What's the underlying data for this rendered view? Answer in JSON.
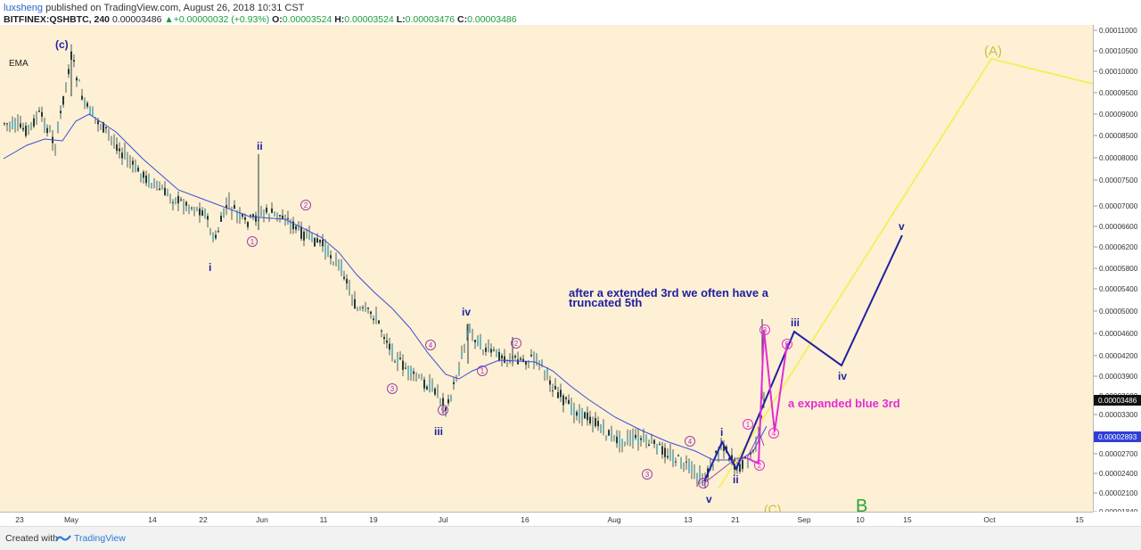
{
  "header": {
    "author": "luxsheng",
    "published_text": "published on TradingView.com, August 26, 2018 10:31 CST",
    "symbol": "BITFINEX:QSHBTC, 240",
    "last": "0.00003486",
    "change": "+0.00000032 (+0.93%)",
    "o_label": "O:",
    "o_val": "0.00003524",
    "h_label": "H:",
    "h_val": "0.00003524",
    "l_label": "L:",
    "l_val": "0.00003476",
    "c_label": "C:",
    "c_val": "0.00003486"
  },
  "indicator": {
    "label": "EMA"
  },
  "price_axis": {
    "ticks": [
      "0.00011000",
      "0.00010500",
      "0.00010000",
      "0.00009500",
      "0.00009000",
      "0.00008500",
      "0.00008000",
      "0.00007500",
      "0.00007000",
      "0.00006600",
      "0.00006200",
      "0.00005800",
      "0.00005400",
      "0.00005000",
      "0.00004600",
      "0.00004200",
      "0.00003900",
      "0.00003600",
      "0.00003300",
      "0.00003000",
      "0.00002700",
      "0.00002400",
      "0.00002100",
      "0.00001840"
    ],
    "current_price": "0.00003486",
    "ema_price": "0.00002893"
  },
  "time_axis": {
    "ticks": [
      "23",
      "May",
      "14",
      "22",
      "Jun",
      "11",
      "19",
      "Jul",
      "16",
      "Aug",
      "13",
      "21",
      "Sep",
      "10",
      "15",
      "Oct",
      "15"
    ]
  },
  "annotations": {
    "note1_line1": "after a extended 3rd we often have a",
    "note1_line2": "truncated 5th",
    "note2": "a expanded blue 3rd",
    "big_A": "(A)",
    "big_B": "B",
    "big_C": "(C)",
    "wave_c": "(c)",
    "wave_i": "i",
    "wave_ii": "ii",
    "wave_iii": "iii",
    "wave_iv": "iv",
    "wave_v": "v",
    "c1": "1",
    "c2": "2",
    "c3": "3",
    "c4": "4",
    "c5": "5"
  },
  "colors": {
    "chart_bg": "#fdf0d4",
    "navy": "#1f1fa3",
    "magenta": "#e32bd8",
    "purple": "#9b3fb0",
    "yellow": "#f3f04a",
    "ema": "#3b4ed6",
    "candle": "#243a3a"
  },
  "footer": {
    "created_with": "Created with",
    "brand": "TradingView"
  }
}
